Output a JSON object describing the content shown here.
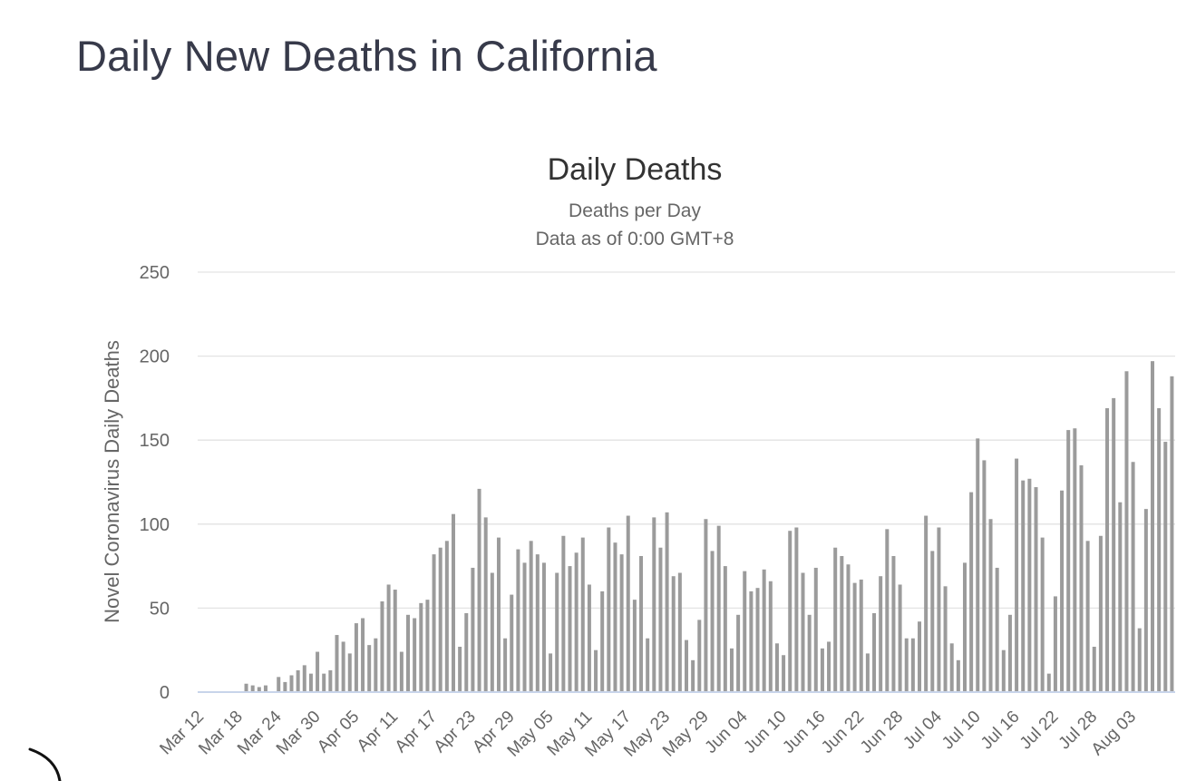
{
  "page": {
    "title": "Daily New Deaths in California"
  },
  "chart_data": {
    "type": "bar",
    "title": "Daily Deaths",
    "subtitle": "Deaths per Day",
    "subtitle2": "Data as of 0:00 GMT+8",
    "xlabel": "",
    "ylabel": "Novel Coronavirus Daily Deaths",
    "ylim": [
      0,
      250
    ],
    "yticks": [
      0,
      50,
      100,
      150,
      200,
      250
    ],
    "grid": true,
    "legend": "none",
    "series": [
      {
        "name": "Daily Deaths",
        "color": "#9b9b9b",
        "values": [
          0,
          0,
          0,
          0,
          0,
          0,
          0,
          5,
          4,
          3,
          4,
          0,
          9,
          6,
          10,
          13,
          16,
          11,
          24,
          11,
          13,
          34,
          30,
          23,
          41,
          44,
          28,
          32,
          54,
          64,
          61,
          24,
          46,
          44,
          53,
          55,
          82,
          86,
          90,
          106,
          27,
          47,
          74,
          121,
          104,
          71,
          92,
          32,
          58,
          85,
          77,
          90,
          82,
          77,
          23,
          71,
          93,
          75,
          83,
          92,
          64,
          25,
          60,
          98,
          89,
          82,
          105,
          55,
          81,
          32,
          104,
          86,
          107,
          69,
          71,
          31,
          19,
          43,
          103,
          84,
          99,
          75,
          26,
          46,
          72,
          60,
          62,
          73,
          66,
          29,
          22,
          96,
          98,
          71,
          46,
          74,
          26,
          30,
          86,
          81,
          76,
          65,
          67,
          23,
          47,
          69,
          97,
          81,
          64,
          32,
          32,
          42,
          105,
          84,
          98,
          63,
          29,
          19,
          77,
          119,
          151,
          138,
          103,
          74,
          25,
          46,
          139,
          126,
          127,
          122,
          92,
          11,
          57,
          120,
          156,
          157,
          135,
          90,
          27,
          93,
          169,
          175,
          113,
          191,
          137,
          38,
          109,
          197,
          169,
          149,
          188
        ]
      }
    ],
    "tick_labels": [
      "Mar 12",
      "Mar 18",
      "Mar 24",
      "Mar 30",
      "Apr 05",
      "Apr 11",
      "Apr 17",
      "Apr 23",
      "Apr 29",
      "May 05",
      "May 11",
      "May 17",
      "May 23",
      "May 29",
      "Jun 04",
      "Jun 10",
      "Jun 16",
      "Jun 22",
      "Jun 28",
      "Jul 04",
      "Jul 10",
      "Jul 16",
      "Jul 22",
      "Jul 28",
      "Aug 03"
    ],
    "tick_every_days": 6
  },
  "annotations": {
    "pen_mark_color": "#111111"
  }
}
